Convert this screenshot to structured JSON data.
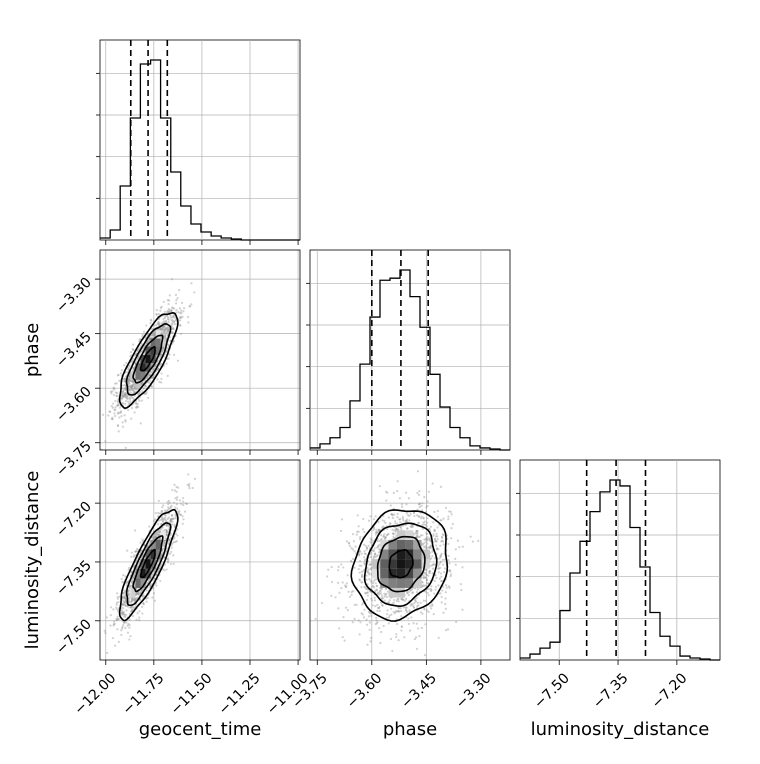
{
  "chart_data": {
    "type": "corner",
    "parameters": [
      {
        "name": "geocent_time",
        "label": "geocent_time",
        "range": [
          -12.03,
          -10.99
        ],
        "ticks": [
          -12.0,
          -11.75,
          -11.5,
          -11.25,
          -11.0
        ],
        "tick_labels": [
          "−12.00",
          "−11.75",
          "−11.50",
          "−11.25",
          "−11.00"
        ],
        "quantiles": [
          -11.87,
          -11.78,
          -11.68
        ],
        "hist_bins": [
          -12.03,
          -11.977,
          -11.925,
          -11.872,
          -11.82,
          -11.767,
          -11.715,
          -11.662,
          -11.61,
          -11.557,
          -11.505,
          -11.452,
          -11.4,
          -11.347,
          -11.295,
          -11.242,
          -11.19,
          -11.137,
          -11.085,
          -11.032,
          -10.99
        ],
        "hist_counts": [
          0.01,
          0.05,
          0.27,
          0.61,
          0.88,
          0.9,
          0.61,
          0.34,
          0.17,
          0.08,
          0.04,
          0.02,
          0.01,
          0.005,
          0,
          0,
          0,
          0,
          0,
          0
        ]
      },
      {
        "name": "phase",
        "label": "phase",
        "range": [
          -3.77,
          -3.22
        ],
        "ticks": [
          -3.75,
          -3.6,
          -3.45,
          -3.3
        ],
        "tick_labels": [
          "−3.75",
          "−3.60",
          "−3.45",
          "−3.30"
        ],
        "quantiles": [
          -3.6,
          -3.52,
          -3.445
        ],
        "hist_bins": [
          -3.77,
          -3.7425,
          -3.715,
          -3.6875,
          -3.66,
          -3.6325,
          -3.605,
          -3.5775,
          -3.55,
          -3.5225,
          -3.495,
          -3.4675,
          -3.44,
          -3.4125,
          -3.385,
          -3.3575,
          -3.33,
          -3.3025,
          -3.275,
          -3.2475,
          -3.22
        ],
        "hist_counts": [
          0.01,
          0.03,
          0.06,
          0.11,
          0.24,
          0.42,
          0.65,
          0.83,
          0.84,
          0.88,
          0.75,
          0.6,
          0.37,
          0.21,
          0.11,
          0.06,
          0.02,
          0.01,
          0.005,
          0
        ]
      },
      {
        "name": "luminosity_distance",
        "label": "luminosity_distance",
        "range": [
          -7.6,
          -7.09
        ],
        "ticks": [
          -7.5,
          -7.35,
          -7.2
        ],
        "tick_labels": [
          "−7.50",
          "−7.35",
          "−7.20"
        ],
        "quantiles": [
          -7.43,
          -7.355,
          -7.28
        ],
        "hist_bins": [
          -7.6,
          -7.5745,
          -7.549,
          -7.5235,
          -7.498,
          -7.4725,
          -7.447,
          -7.4215,
          -7.396,
          -7.3705,
          -7.345,
          -7.3195,
          -7.294,
          -7.2685,
          -7.243,
          -7.2175,
          -7.192,
          -7.1665,
          -7.141,
          -7.1155,
          -7.09
        ],
        "hist_counts": [
          0.01,
          0.03,
          0.06,
          0.09,
          0.25,
          0.44,
          0.6,
          0.75,
          0.85,
          0.91,
          0.88,
          0.67,
          0.47,
          0.24,
          0.12,
          0.07,
          0.02,
          0.01,
          0.005,
          0
        ]
      }
    ],
    "pairs": [
      {
        "x": "geocent_time",
        "y": "phase",
        "mean": [
          -11.78,
          -3.52
        ],
        "sd": [
          0.075,
          0.065
        ],
        "corr": 0.8
      },
      {
        "x": "geocent_time",
        "y": "luminosity_distance",
        "mean": [
          -11.78,
          -7.355
        ],
        "sd": [
          0.075,
          0.07
        ],
        "corr": 0.85
      },
      {
        "x": "phase",
        "y": "luminosity_distance",
        "mean": [
          -3.52,
          -7.355
        ],
        "sd": [
          0.065,
          0.07
        ],
        "corr": 0.15
      }
    ],
    "contour_levels": [
      "0.5 sigma",
      "1 sigma",
      "1.5 sigma",
      "2 sigma"
    ],
    "grid": true,
    "colors": {
      "line": "#000000",
      "points": "#9a9a9a",
      "grid": "#b0b0b0"
    }
  }
}
